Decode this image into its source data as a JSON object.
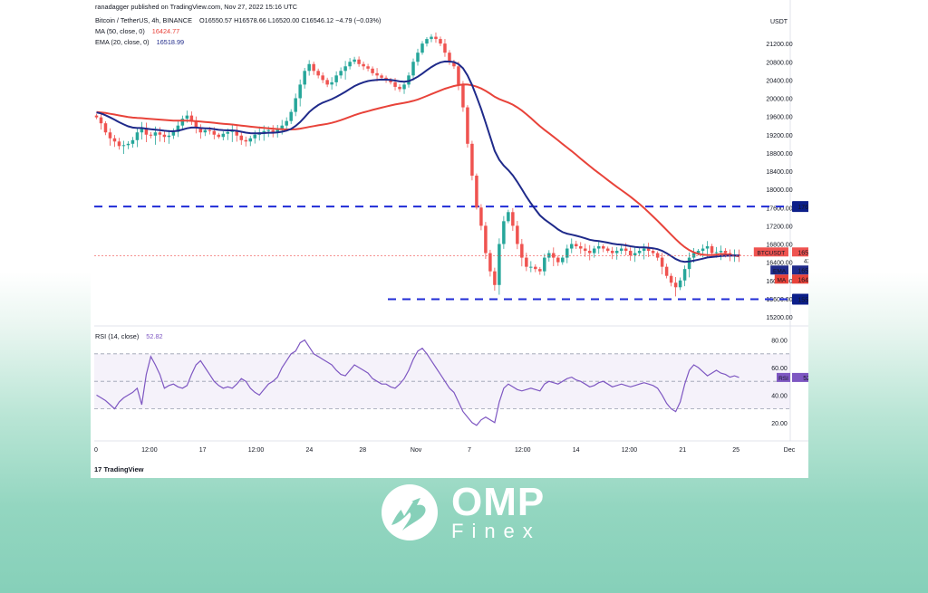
{
  "header": {
    "publisher": "ranadagger published on TradingView.com, Nov 27, 2022 15:16 UTC",
    "symbol_line": "Bitcoin / TetherUS, 4h, BINANCE",
    "ohlc": "O16550.57  H16578.66  L16520.00  C16546.12  −4.79 (−0.03%)",
    "ma_label": "MA (50, close, 0)",
    "ma_value": "16424.77",
    "ema_label": "EMA (20, close, 0)",
    "ema_value": "16518.99",
    "rsi_label": "RSI (14, close)",
    "rsi_value": "52.82"
  },
  "footer": {
    "tradingview": "TradingView"
  },
  "logo": {
    "name": "OMP",
    "sub": "Finex"
  },
  "colors": {
    "ema": "#1f2a8a",
    "ma": "#e8433a",
    "rsi": "#7e57c2",
    "level": "#1f2bd6",
    "up": "#26a69a",
    "down": "#ef5350",
    "price_tag": "#ef5350"
  },
  "chart_data": [
    {
      "type": "candlestick",
      "title": "Bitcoin / TetherUS, 4h, BINANCE",
      "ylabel": "USDT",
      "ylim": [
        15200,
        21600
      ],
      "y_ticks": [
        "21200.00",
        "20800.00",
        "20400.00",
        "20000.00",
        "19600.00",
        "19200.00",
        "18800.00",
        "18400.00",
        "18000.00",
        "17600.00",
        "17200.00",
        "16800.00",
        "16400.00",
        "16000.00",
        "15600.00",
        "15200.00"
      ],
      "x_ticks": [
        "0",
        "12:00",
        "17",
        "12:00",
        "24",
        "28",
        "Nov",
        "7",
        "12:00",
        "14",
        "12:00",
        "21",
        "25",
        "Dec"
      ],
      "price_labels": [
        {
          "name": "BTCUSDT",
          "value": "16546.12",
          "sub": "43:07"
        },
        {
          "name": "EMA",
          "value": "16518.99"
        },
        {
          "name": "MA",
          "value": "16424.77"
        }
      ],
      "horizontal_levels": [
        {
          "label": "17622.00",
          "value": 17622
        },
        {
          "label": "15588.00",
          "value": 15588
        }
      ],
      "close_series": [
        19580,
        19450,
        19250,
        19120,
        19050,
        18950,
        18970,
        19000,
        19080,
        19250,
        19350,
        19200,
        19180,
        19250,
        19200,
        19150,
        19180,
        19260,
        19400,
        19550,
        19620,
        19500,
        19350,
        19250,
        19300,
        19280,
        19200,
        19150,
        19220,
        19260,
        19300,
        19180,
        19080,
        19050,
        19120,
        19200,
        19250,
        19280,
        19300,
        19260,
        19320,
        19400,
        19500,
        19700,
        20000,
        20300,
        20600,
        20750,
        20600,
        20500,
        20400,
        20300,
        20350,
        20500,
        20600,
        20700,
        20800,
        20850,
        20750,
        20700,
        20650,
        20550,
        20500,
        20450,
        20400,
        20350,
        20250,
        20200,
        20300,
        20500,
        20800,
        21000,
        21200,
        21300,
        21350,
        21300,
        21200,
        21000,
        20800,
        20700,
        20300,
        19800,
        19000,
        18300,
        17600,
        17200,
        16600,
        16200,
        15900,
        16800,
        17300,
        17500,
        17200,
        16800,
        16500,
        16300,
        16300,
        16250,
        16200,
        16500,
        16600,
        16500,
        16400,
        16500,
        16700,
        16800,
        16750,
        16700,
        16650,
        16600,
        16700,
        16750,
        16700,
        16650,
        16600,
        16650,
        16700,
        16650,
        16550,
        16600,
        16650,
        16700,
        16650,
        16600,
        16500,
        16300,
        16100,
        15950,
        15850,
        16000,
        16250,
        16500,
        16600,
        16650,
        16700,
        16750,
        16600,
        16620,
        16650,
        16600,
        16560,
        16570,
        16546
      ],
      "ema_last": 16518.99,
      "ma_last": 16424.77,
      "last": 16546.12
    },
    {
      "type": "line",
      "title": "RSI (14, close)",
      "ylim": [
        10,
        85
      ],
      "y_ticks": [
        "80.00",
        "60.00",
        "40.00",
        "20.00"
      ],
      "bands": [
        70,
        50,
        30
      ],
      "last": 52.82,
      "values": [
        40,
        38,
        36,
        33,
        30,
        35,
        38,
        40,
        42,
        45,
        33,
        55,
        68,
        62,
        55,
        45,
        47,
        48,
        46,
        45,
        47,
        55,
        62,
        65,
        60,
        55,
        50,
        47,
        45,
        46,
        45,
        48,
        52,
        50,
        45,
        42,
        40,
        44,
        48,
        50,
        53,
        60,
        65,
        70,
        72,
        78,
        80,
        75,
        70,
        68,
        66,
        64,
        62,
        58,
        55,
        54,
        58,
        62,
        60,
        58,
        56,
        52,
        50,
        48,
        48,
        46,
        45,
        48,
        52,
        58,
        66,
        72,
        74,
        70,
        65,
        60,
        55,
        50,
        45,
        42,
        35,
        28,
        24,
        20,
        18,
        22,
        24,
        22,
        20,
        35,
        45,
        48,
        46,
        44,
        43,
        44,
        45,
        44,
        43,
        48,
        50,
        49,
        48,
        50,
        52,
        53,
        51,
        50,
        48,
        46,
        47,
        49,
        50,
        48,
        46,
        47,
        48,
        47,
        46,
        47,
        48,
        49,
        48,
        47,
        45,
        40,
        34,
        30,
        28,
        35,
        48,
        58,
        62,
        60,
        57,
        54,
        56,
        58,
        56,
        55,
        53,
        54,
        52.82
      ]
    }
  ]
}
